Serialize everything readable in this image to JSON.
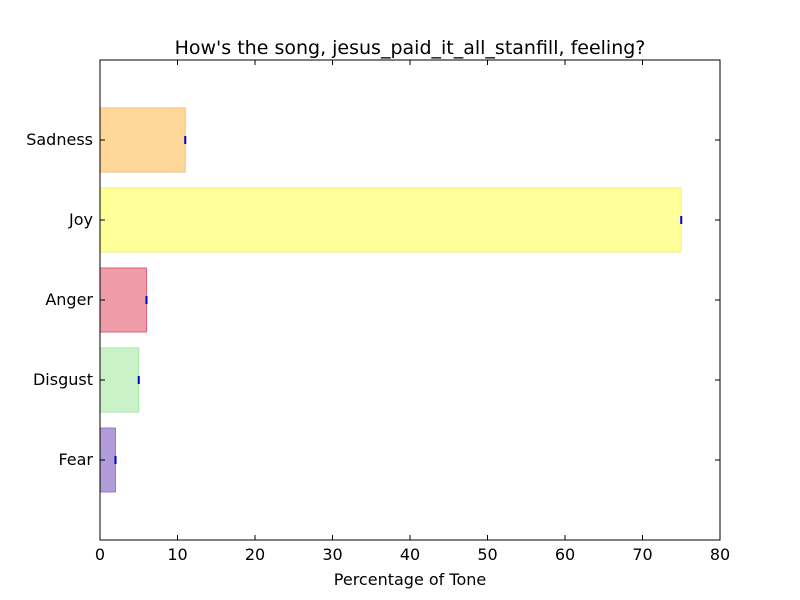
{
  "chart_data": {
    "type": "bar",
    "orientation": "horizontal",
    "title": "How's the song, jesus_paid_it_all_stanfill, feeling?",
    "xlabel": "Percentage of Tone",
    "ylabel": "",
    "xlim": [
      0,
      80
    ],
    "xticks": [
      "0",
      "10",
      "20",
      "30",
      "40",
      "50",
      "60",
      "70",
      "80"
    ],
    "categories": [
      "Fear",
      "Disgust",
      "Anger",
      "Joy",
      "Sadness"
    ],
    "values": [
      2,
      5,
      6,
      75,
      11
    ],
    "colors": [
      "#b19cd9",
      "#c9f2c9",
      "#ee9ca7",
      "#ffff99",
      "#ffd899"
    ],
    "edge_colors": [
      "#9b78c8",
      "#a6e6a6",
      "#e0607a",
      "#f0f07a",
      "#f5c070"
    ],
    "errorbar_color": "#0000cc",
    "grid": false
  }
}
